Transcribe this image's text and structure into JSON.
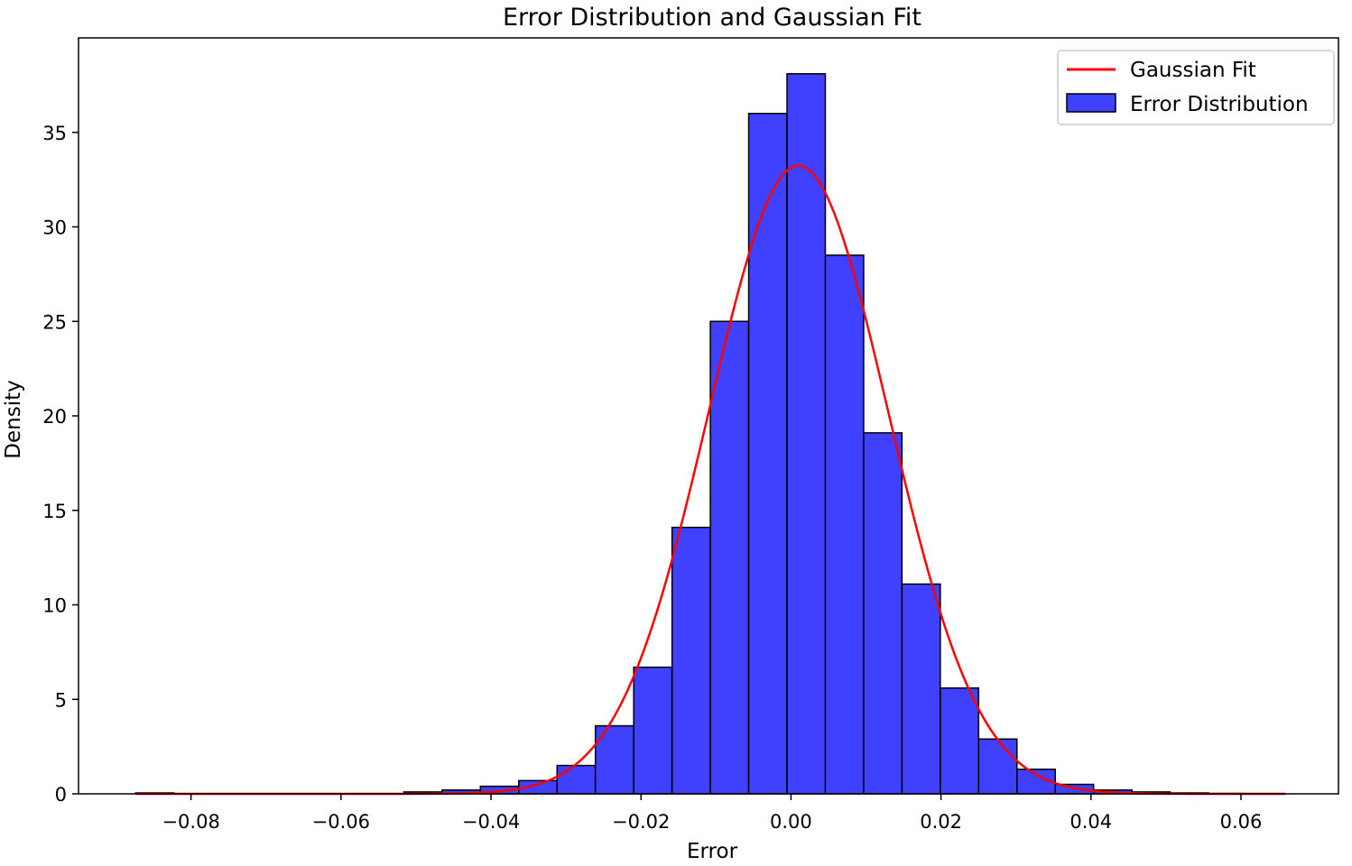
{
  "chart_data": {
    "type": "bar",
    "title": "Error Distribution and Gaussian Fit",
    "xlabel": "Error",
    "ylabel": "Density",
    "xlim": [
      -0.095,
      0.073
    ],
    "ylim": [
      0,
      40
    ],
    "xticks": [
      -0.08,
      -0.06,
      -0.04,
      -0.02,
      0.0,
      0.02,
      0.04,
      0.06
    ],
    "xtick_labels": [
      "−0.08",
      "−0.06",
      "−0.04",
      "−0.02",
      "0.00",
      "0.02",
      "0.04",
      "0.06"
    ],
    "yticks": [
      0,
      5,
      10,
      15,
      20,
      25,
      30,
      35
    ],
    "ytick_labels": [
      "0",
      "5",
      "10",
      "15",
      "20",
      "25",
      "30",
      "35"
    ],
    "grid": false,
    "legend_position": "top-right",
    "series": [
      {
        "name": "Error Distribution",
        "kind": "histogram",
        "color": "#4040ff",
        "edge_color": "#000000",
        "bin_start": -0.0874,
        "bin_width": 0.00511,
        "values": [
          0.05,
          0,
          0,
          0,
          0,
          0,
          0,
          0.1,
          0.2,
          0.4,
          0.7,
          1.5,
          3.6,
          6.7,
          14.1,
          25.0,
          36.0,
          38.1,
          28.5,
          19.1,
          11.1,
          5.6,
          2.9,
          1.3,
          0.5,
          0.2,
          0.1,
          0.05,
          0.02,
          0.01
        ]
      },
      {
        "name": "Gaussian Fit",
        "kind": "line",
        "color": "#ff0000",
        "mean": 0.001,
        "std": 0.012,
        "x_range": [
          -0.0874,
          0.0659
        ]
      }
    ]
  }
}
